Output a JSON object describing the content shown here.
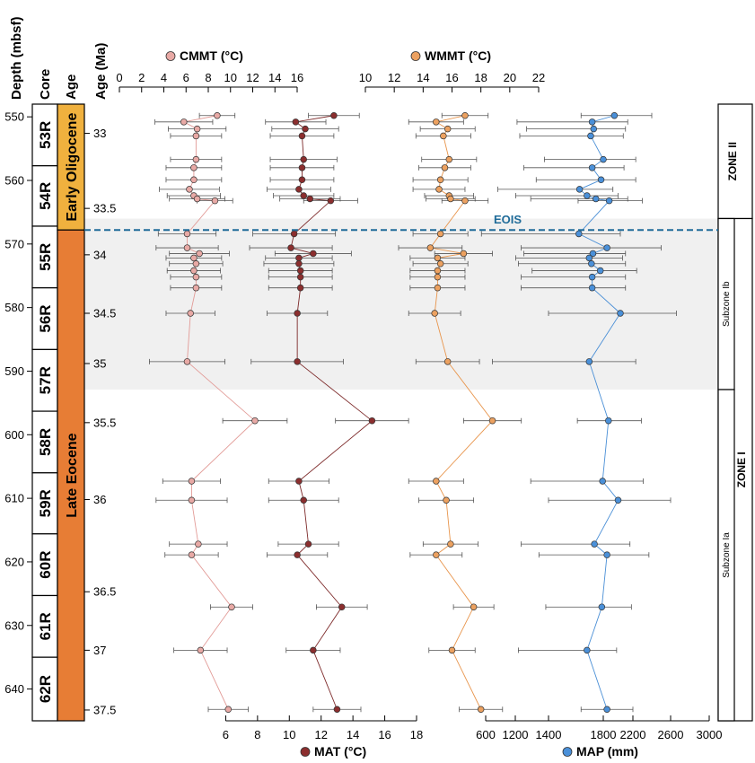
{
  "chart_data": {
    "type": "scatter",
    "depth_axis": {
      "title": "Depth (mbsf)",
      "range": [
        548,
        645
      ],
      "ticks": [
        550,
        560,
        570,
        580,
        590,
        600,
        610,
        620,
        630,
        640
      ],
      "tick_labels": [
        "550",
        "560",
        "570",
        "580",
        "590",
        "600",
        "610",
        "620",
        "630",
        "640"
      ]
    },
    "core_column": {
      "title": "Core",
      "cores": [
        {
          "label": "53R",
          "top": 548.0,
          "bottom": 557.7
        },
        {
          "label": "54R",
          "top": 557.7,
          "bottom": 567.2
        },
        {
          "label": "55R",
          "top": 567.2,
          "bottom": 576.9
        },
        {
          "label": "56R",
          "top": 576.9,
          "bottom": 586.6
        },
        {
          "label": "57R",
          "top": 586.6,
          "bottom": 596.3
        },
        {
          "label": "58R",
          "top": 596.3,
          "bottom": 606.0
        },
        {
          "label": "59R",
          "top": 606.0,
          "bottom": 615.6
        },
        {
          "label": "60R",
          "top": 615.6,
          "bottom": 625.3
        },
        {
          "label": "61R",
          "top": 625.3,
          "bottom": 635.0
        },
        {
          "label": "62R",
          "top": 635.0,
          "bottom": 645.0
        }
      ]
    },
    "epoch_column": {
      "title": "Age",
      "epochs": [
        {
          "label": "Early Oligocene",
          "top": 548.0,
          "bottom": 567.8,
          "color": "#f0b13e"
        },
        {
          "label": "Late Eocene",
          "top": 567.8,
          "bottom": 645.0,
          "color": "#e77d35"
        }
      ]
    },
    "age_axis": {
      "title": "Age (Ma)",
      "ticks": [
        {
          "label": "33",
          "depth": 552.6
        },
        {
          "label": "33.5",
          "depth": 564.4
        },
        {
          "label": "34",
          "depth": 571.7
        },
        {
          "label": "34.5",
          "depth": 580.9
        },
        {
          "label": "35",
          "depth": 588.8
        },
        {
          "label": "35.5",
          "depth": 598.1
        },
        {
          "label": "36",
          "depth": 610.2
        },
        {
          "label": "36.5",
          "depth": 624.7
        },
        {
          "label": "37",
          "depth": 633.9
        },
        {
          "label": "37.5",
          "depth": 643.3
        }
      ]
    },
    "eois": {
      "label": "EOIS",
      "depth": 567.8
    },
    "shaded_interval": {
      "top": 566.0,
      "bottom": 592.9
    },
    "zones": [
      {
        "label": "ZONE II",
        "top": 548.0,
        "bottom": 566.0
      },
      {
        "label": "ZONE I",
        "top": 566.0,
        "bottom": 645.0
      }
    ],
    "subzones": [
      {
        "label": "Subzone Ib",
        "top": 566.0,
        "bottom": 592.9
      },
      {
        "label": "Subzone Ia",
        "top": 592.9,
        "bottom": 645.0
      }
    ],
    "series": [
      {
        "name": "CMMT (°C)",
        "axis_position": "top",
        "axis_range": [
          0,
          16
        ],
        "axis_ticks": [
          0,
          2,
          4,
          6,
          8,
          10,
          12,
          14,
          16
        ],
        "color": "#e8a9a5",
        "line_color": "#e29b97",
        "points": [
          {
            "depth": 549.8,
            "value": 8.8,
            "err": 1.6
          },
          {
            "depth": 550.8,
            "value": 5.8,
            "err": 2.6
          },
          {
            "depth": 551.9,
            "value": 7.0,
            "err": 2.6
          },
          {
            "depth": 553.0,
            "value": 6.9,
            "err": 2.3
          },
          {
            "depth": 556.7,
            "value": 6.9,
            "err": 2.3
          },
          {
            "depth": 558.0,
            "value": 6.7,
            "err": 2.5
          },
          {
            "depth": 559.9,
            "value": 6.7,
            "err": 2.5
          },
          {
            "depth": 561.4,
            "value": 6.3,
            "err": 2.7
          },
          {
            "depth": 562.4,
            "value": 6.7,
            "err": 2.4
          },
          {
            "depth": 562.9,
            "value": 7.0,
            "err": 2.5
          },
          {
            "depth": 563.2,
            "value": 8.6,
            "err": 1.6
          },
          {
            "depth": 568.4,
            "value": 6.1,
            "err": 2.6
          },
          {
            "depth": 570.6,
            "value": 6.1,
            "err": 2.8
          },
          {
            "depth": 571.5,
            "value": 7.2,
            "err": 2.7
          },
          {
            "depth": 572.2,
            "value": 6.7,
            "err": 2.5
          },
          {
            "depth": 573.1,
            "value": 6.9,
            "err": 2.4
          },
          {
            "depth": 574.2,
            "value": 6.7,
            "err": 2.4
          },
          {
            "depth": 575.2,
            "value": 6.9,
            "err": 2.3
          },
          {
            "depth": 576.9,
            "value": 6.9,
            "err": 2.3
          },
          {
            "depth": 580.9,
            "value": 6.4,
            "err": 2.2
          },
          {
            "depth": 588.5,
            "value": 6.1,
            "err": 3.4
          },
          {
            "depth": 597.8,
            "value": 12.2,
            "err": 2.9
          },
          {
            "depth": 607.3,
            "value": 6.5,
            "err": 2.6
          },
          {
            "depth": 610.3,
            "value": 6.5,
            "err": 3.2
          },
          {
            "depth": 617.2,
            "value": 7.1,
            "err": 2.6
          },
          {
            "depth": 618.9,
            "value": 6.5,
            "err": 2.4
          },
          {
            "depth": 627.1,
            "value": 10.1,
            "err": 1.9
          },
          {
            "depth": 633.9,
            "value": 7.3,
            "err": 2.4
          },
          {
            "depth": 643.2,
            "value": 9.8,
            "err": 1.8
          }
        ]
      },
      {
        "name": "MAT (°C)",
        "axis_position": "bottom",
        "axis_range": [
          4,
          18
        ],
        "axis_ticks": [
          6,
          8,
          10,
          12,
          14,
          16,
          18
        ],
        "color": "#8b2e2e",
        "line_color": "#7d2a2a",
        "points": [
          {
            "depth": 549.8,
            "value": 12.8,
            "err": 1.6
          },
          {
            "depth": 550.8,
            "value": 10.4,
            "err": 1.9
          },
          {
            "depth": 551.9,
            "value": 11.0,
            "err": 2.1
          },
          {
            "depth": 553.0,
            "value": 10.8,
            "err": 2.0
          },
          {
            "depth": 556.7,
            "value": 10.9,
            "err": 2.1
          },
          {
            "depth": 558.0,
            "value": 10.8,
            "err": 2.0
          },
          {
            "depth": 559.9,
            "value": 10.8,
            "err": 2.0
          },
          {
            "depth": 561.4,
            "value": 10.6,
            "err": 2.0
          },
          {
            "depth": 562.4,
            "value": 10.9,
            "err": 1.9
          },
          {
            "depth": 562.9,
            "value": 11.3,
            "err": 1.9
          },
          {
            "depth": 563.2,
            "value": 12.6,
            "err": 1.7
          },
          {
            "depth": 568.4,
            "value": 10.3,
            "err": 2.6
          },
          {
            "depth": 570.6,
            "value": 10.1,
            "err": 2.6
          },
          {
            "depth": 571.5,
            "value": 11.5,
            "err": 2.4
          },
          {
            "depth": 572.2,
            "value": 10.6,
            "err": 2.1
          },
          {
            "depth": 573.1,
            "value": 10.6,
            "err": 2.2
          },
          {
            "depth": 574.2,
            "value": 10.7,
            "err": 2.0
          },
          {
            "depth": 575.2,
            "value": 10.7,
            "err": 2.0
          },
          {
            "depth": 576.9,
            "value": 10.7,
            "err": 2.0
          },
          {
            "depth": 580.9,
            "value": 10.5,
            "err": 1.9
          },
          {
            "depth": 588.5,
            "value": 10.5,
            "err": 2.9
          },
          {
            "depth": 597.8,
            "value": 15.2,
            "err": 2.3
          },
          {
            "depth": 607.3,
            "value": 10.6,
            "err": 1.9
          },
          {
            "depth": 610.3,
            "value": 10.9,
            "err": 2.2
          },
          {
            "depth": 617.2,
            "value": 11.2,
            "err": 1.9
          },
          {
            "depth": 618.9,
            "value": 10.5,
            "err": 1.9
          },
          {
            "depth": 627.1,
            "value": 13.3,
            "err": 1.6
          },
          {
            "depth": 633.9,
            "value": 11.5,
            "err": 1.7
          },
          {
            "depth": 643.2,
            "value": 13.0,
            "err": 1.5
          }
        ]
      },
      {
        "name": "WMMT (°C)",
        "axis_position": "top",
        "axis_range": [
          10,
          22
        ],
        "axis_ticks": [
          10,
          12,
          14,
          16,
          18,
          20,
          22
        ],
        "color": "#eca160",
        "line_color": "#e8954c",
        "points": [
          {
            "depth": 549.8,
            "value": 16.9,
            "err": 1.6
          },
          {
            "depth": 550.8,
            "value": 14.9,
            "err": 1.9
          },
          {
            "depth": 551.9,
            "value": 15.7,
            "err": 1.9
          },
          {
            "depth": 553.0,
            "value": 15.4,
            "err": 1.9
          },
          {
            "depth": 556.7,
            "value": 15.8,
            "err": 1.9
          },
          {
            "depth": 558.0,
            "value": 15.5,
            "err": 1.8
          },
          {
            "depth": 559.9,
            "value": 15.2,
            "err": 1.9
          },
          {
            "depth": 561.4,
            "value": 15.1,
            "err": 1.8
          },
          {
            "depth": 562.4,
            "value": 15.8,
            "err": 1.7
          },
          {
            "depth": 562.9,
            "value": 15.9,
            "err": 1.7
          },
          {
            "depth": 563.2,
            "value": 16.9,
            "err": 1.6
          },
          {
            "depth": 568.4,
            "value": 15.2,
            "err": 1.9
          },
          {
            "depth": 570.6,
            "value": 14.5,
            "err": 2.2
          },
          {
            "depth": 571.5,
            "value": 16.8,
            "err": 2.0
          },
          {
            "depth": 572.2,
            "value": 15.0,
            "err": 1.9
          },
          {
            "depth": 573.1,
            "value": 15.2,
            "err": 1.9
          },
          {
            "depth": 574.2,
            "value": 15.0,
            "err": 1.9
          },
          {
            "depth": 575.2,
            "value": 15.0,
            "err": 1.9
          },
          {
            "depth": 576.9,
            "value": 15.0,
            "err": 1.9
          },
          {
            "depth": 580.9,
            "value": 14.8,
            "err": 1.8
          },
          {
            "depth": 588.5,
            "value": 15.7,
            "err": 2.2
          },
          {
            "depth": 597.8,
            "value": 18.8,
            "err": 2.0
          },
          {
            "depth": 607.3,
            "value": 14.9,
            "err": 1.9
          },
          {
            "depth": 610.3,
            "value": 15.6,
            "err": 1.9
          },
          {
            "depth": 617.2,
            "value": 15.9,
            "err": 1.9
          },
          {
            "depth": 618.9,
            "value": 14.9,
            "err": 1.8
          },
          {
            "depth": 627.1,
            "value": 17.5,
            "err": 1.4
          },
          {
            "depth": 633.9,
            "value": 16.0,
            "err": 1.6
          },
          {
            "depth": 643.2,
            "value": 18.0,
            "err": 1.5
          }
        ]
      },
      {
        "name": "MAP (mm)",
        "axis_position": "bottom",
        "axis_range": [
          0,
          3000
        ],
        "axis_ticks": [
          600,
          1200,
          1400,
          1800,
          2200,
          2600,
          3000
        ],
        "color": "#4a90d9",
        "line_color": "#4a8fd6",
        "points": [
          {
            "depth": 549.8,
            "value": 1950,
            "err": 450
          },
          {
            "depth": 550.8,
            "value": 1650,
            "err": 480
          },
          {
            "depth": 551.9,
            "value": 1670,
            "err": 430
          },
          {
            "depth": 553.0,
            "value": 1630,
            "err": 440
          },
          {
            "depth": 556.7,
            "value": 1800,
            "err": 430
          },
          {
            "depth": 558.0,
            "value": 1650,
            "err": 430
          },
          {
            "depth": 559.9,
            "value": 1770,
            "err": 460
          },
          {
            "depth": 561.4,
            "value": 1480,
            "err": 450
          },
          {
            "depth": 562.4,
            "value": 1580,
            "err": 420
          },
          {
            "depth": 562.9,
            "value": 1700,
            "err": 430
          },
          {
            "depth": 563.2,
            "value": 1880,
            "err": 420
          },
          {
            "depth": 568.4,
            "value": 1470,
            "err": 560
          },
          {
            "depth": 570.6,
            "value": 1850,
            "err": 650
          },
          {
            "depth": 571.5,
            "value": 1660,
            "err": 440
          },
          {
            "depth": 572.2,
            "value": 1610,
            "err": 450
          },
          {
            "depth": 573.1,
            "value": 1640,
            "err": 460
          },
          {
            "depth": 574.2,
            "value": 1760,
            "err": 480
          },
          {
            "depth": 575.2,
            "value": 1650,
            "err": 450
          },
          {
            "depth": 576.9,
            "value": 1650,
            "err": 450
          },
          {
            "depth": 580.9,
            "value": 2030,
            "err": 630
          },
          {
            "depth": 588.5,
            "value": 1610,
            "err": 620
          },
          {
            "depth": 597.8,
            "value": 1870,
            "err": 420
          },
          {
            "depth": 607.3,
            "value": 1790,
            "err": 520
          },
          {
            "depth": 610.3,
            "value": 2000,
            "err": 600
          },
          {
            "depth": 617.2,
            "value": 1680,
            "err": 480
          },
          {
            "depth": 618.9,
            "value": 1850,
            "err": 520
          },
          {
            "depth": 627.1,
            "value": 1780,
            "err": 400
          },
          {
            "depth": 633.9,
            "value": 1580,
            "err": 400
          },
          {
            "depth": 643.2,
            "value": 1850,
            "err": 350
          }
        ]
      }
    ]
  }
}
